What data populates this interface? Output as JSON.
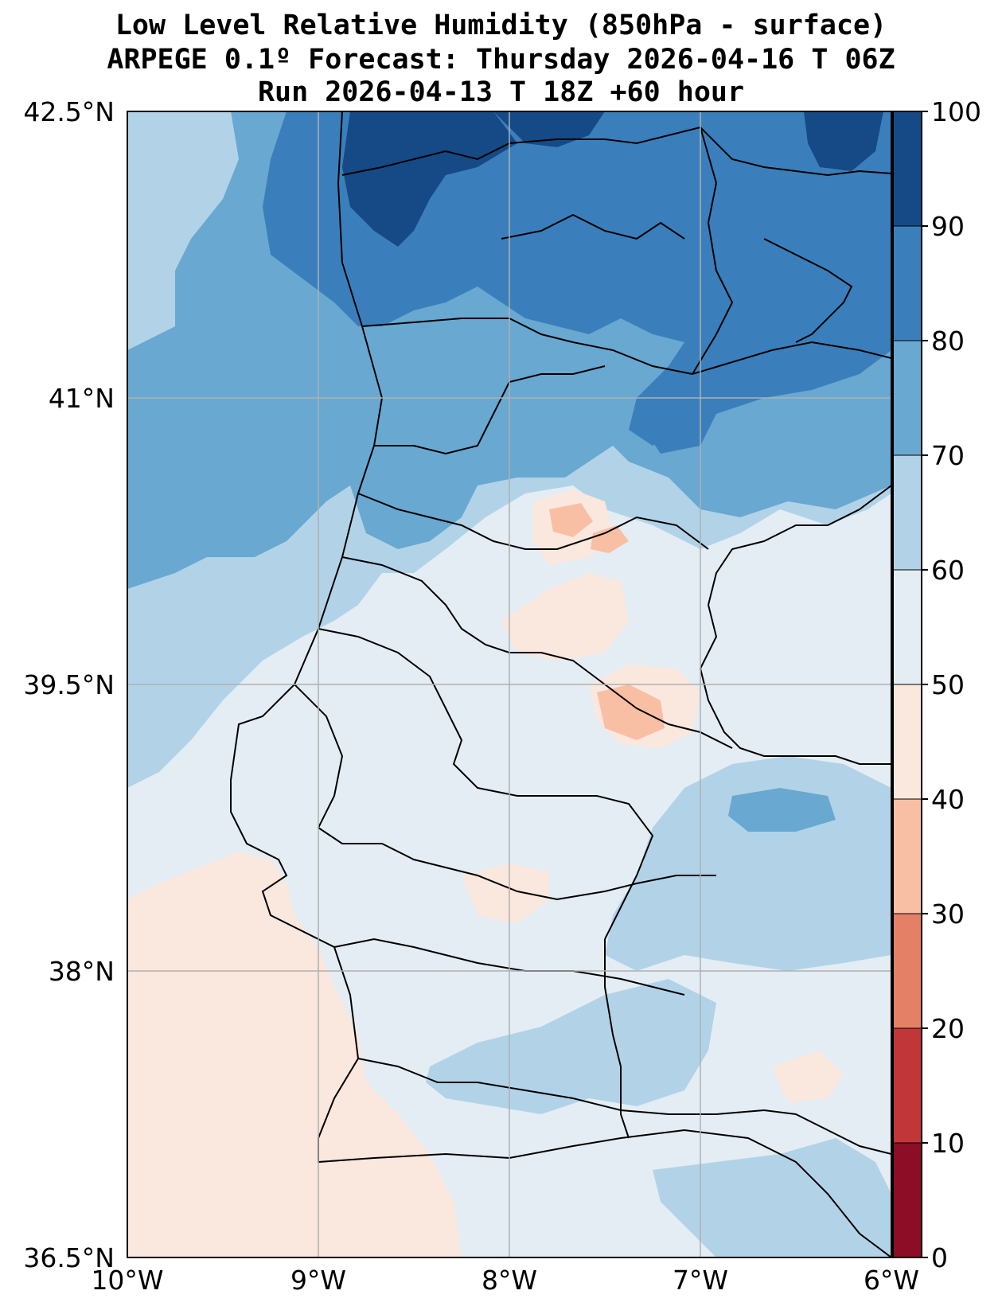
{
  "title": {
    "line1": "Low Level Relative Humidity (850hPa - surface)",
    "line2": "ARPEGE 0.1º Forecast: Thursday 2026-04-16 T 06Z",
    "line3": "Run 2026-04-13 T 18Z +60 hour"
  },
  "map": {
    "lon_range": [
      -10,
      -6
    ],
    "lat_range": [
      36.5,
      42.5
    ],
    "lat_ticks": [
      {
        "value": 42.5,
        "label": "42.5°N"
      },
      {
        "value": 41.0,
        "label": "41°N"
      },
      {
        "value": 39.5,
        "label": "39.5°N"
      },
      {
        "value": 38.0,
        "label": "38°N"
      },
      {
        "value": 36.5,
        "label": "36.5°N"
      }
    ],
    "lon_ticks": [
      {
        "value": -10,
        "label": "10°W"
      },
      {
        "value": -9,
        "label": "9°W"
      },
      {
        "value": -8,
        "label": "8°W"
      },
      {
        "value": -7,
        "label": "7°W"
      },
      {
        "value": -6,
        "label": "6°W"
      }
    ],
    "gridlines": true
  },
  "colorbar": {
    "levels": [
      0,
      10,
      20,
      30,
      40,
      50,
      60,
      70,
      80,
      90,
      100
    ],
    "tick_labels": [
      "0",
      "10",
      "20",
      "30",
      "40",
      "50",
      "60",
      "70",
      "80",
      "90",
      "100"
    ],
    "colors": [
      "#8c0d25",
      "#c13639",
      "#e48066",
      "#f9bfa4",
      "#fae7dd",
      "#e4edf4",
      "#b2d3e7",
      "#69a8d0",
      "#3a7fbb",
      "#154a86"
    ]
  }
}
